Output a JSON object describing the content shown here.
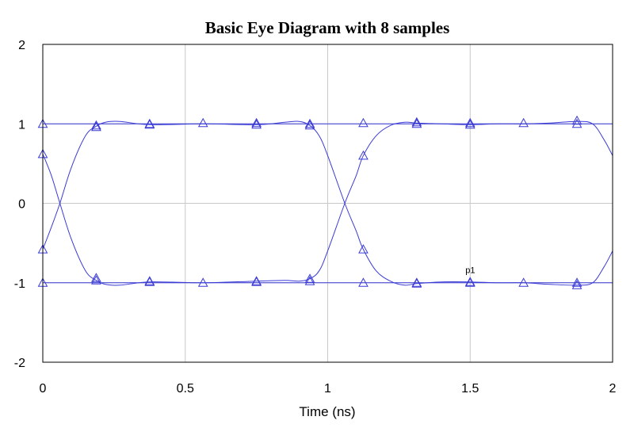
{
  "chart_data": {
    "type": "line",
    "title": "Basic Eye Diagram with 8 samples",
    "xlabel": "Time (ns)",
    "ylabel": "",
    "xlim": [
      0,
      2
    ],
    "ylim": [
      -2,
      2
    ],
    "xticks": [
      "0",
      "0.5",
      "1",
      "1.5",
      "2"
    ],
    "xtick_values": [
      0,
      0.5,
      1,
      1.5,
      2
    ],
    "yticks": [
      "2",
      "1",
      "0",
      "-1",
      "-2"
    ],
    "ytick_values": [
      2,
      1,
      0,
      -1,
      -2
    ],
    "grid": true,
    "line_color": "#3b3bd6",
    "marker": "triangle",
    "sample_times": [
      0,
      0.1875,
      0.375,
      0.5625,
      0.75,
      0.9375,
      1.125,
      1.3125,
      1.5,
      1.6875,
      1.875
    ],
    "series": [
      {
        "x": [
          0,
          1,
          2
        ],
        "y": [
          1,
          1,
          1
        ]
      },
      {
        "x": [
          0,
          1,
          2
        ],
        "y": [
          -1,
          -1,
          -1
        ]
      },
      {
        "x": [
          0,
          0.03,
          0.06,
          0.1,
          0.15,
          0.1875,
          0.22,
          0.27,
          0.375,
          0.5625,
          0.75,
          0.85,
          0.9,
          0.9375,
          0.97,
          1.0,
          1.06,
          1.1,
          1.125,
          1.17,
          1.22,
          1.27,
          1.3125,
          1.4,
          1.5,
          1.6,
          1.6875,
          1.78,
          1.875,
          1.93,
          1.97,
          2.0
        ],
        "y": [
          0.62,
          0.35,
          0.0,
          -0.45,
          -0.85,
          -0.97,
          -1.02,
          -1.03,
          -0.99,
          -1.0,
          -0.98,
          -0.97,
          -0.98,
          -0.95,
          -0.85,
          -0.6,
          0.0,
          0.35,
          0.6,
          0.85,
          0.98,
          1.02,
          1.01,
          1.0,
          0.99,
          1.0,
          1.0,
          1.01,
          1.03,
          1.0,
          0.8,
          0.6
        ]
      },
      {
        "x": [
          0,
          0.03,
          0.06,
          0.1,
          0.15,
          0.1875,
          0.22,
          0.27,
          0.375,
          0.5625,
          0.75,
          0.85,
          0.9,
          0.9375,
          0.97,
          1.0,
          1.06,
          1.1,
          1.125,
          1.17,
          1.22,
          1.27,
          1.3125,
          1.4,
          1.5,
          1.6,
          1.6875,
          1.78,
          1.875,
          1.93,
          1.97,
          2.0
        ],
        "y": [
          -0.58,
          -0.3,
          0.0,
          0.45,
          0.85,
          0.97,
          1.02,
          1.03,
          0.99,
          1.0,
          0.99,
          1.02,
          1.03,
          0.98,
          0.85,
          0.6,
          0.0,
          -0.35,
          -0.58,
          -0.85,
          -0.98,
          -1.03,
          -1.01,
          -0.99,
          -0.99,
          -1.0,
          -1.0,
          -1.02,
          -1.03,
          -1.0,
          -0.8,
          -0.6
        ]
      }
    ],
    "markers": [
      {
        "x": 0,
        "y": 1.0
      },
      {
        "x": 0,
        "y": 0.62
      },
      {
        "x": 0,
        "y": -0.58
      },
      {
        "x": 0,
        "y": -1.0
      },
      {
        "x": 0.1875,
        "y": 0.98
      },
      {
        "x": 0.1875,
        "y": 0.96
      },
      {
        "x": 0.1875,
        "y": -0.97
      },
      {
        "x": 0.1875,
        "y": -0.94
      },
      {
        "x": 0.375,
        "y": 1.0
      },
      {
        "x": 0.375,
        "y": 0.99
      },
      {
        "x": 0.375,
        "y": -0.99
      },
      {
        "x": 0.375,
        "y": -0.98
      },
      {
        "x": 0.5625,
        "y": 1.01
      },
      {
        "x": 0.5625,
        "y": -1.0
      },
      {
        "x": 0.75,
        "y": 1.01
      },
      {
        "x": 0.75,
        "y": 0.99
      },
      {
        "x": 0.75,
        "y": -0.99
      },
      {
        "x": 0.75,
        "y": -0.98
      },
      {
        "x": 0.9375,
        "y": 1.0
      },
      {
        "x": 0.9375,
        "y": 0.98
      },
      {
        "x": 0.9375,
        "y": -0.95
      },
      {
        "x": 0.9375,
        "y": -0.98
      },
      {
        "x": 1.125,
        "y": 1.01
      },
      {
        "x": 1.125,
        "y": 0.6
      },
      {
        "x": 1.125,
        "y": -0.58
      },
      {
        "x": 1.125,
        "y": -1.0
      },
      {
        "x": 1.3125,
        "y": 1.02
      },
      {
        "x": 1.3125,
        "y": 1.0
      },
      {
        "x": 1.3125,
        "y": -1.0
      },
      {
        "x": 1.3125,
        "y": -1.01
      },
      {
        "x": 1.5,
        "y": 1.01
      },
      {
        "x": 1.5,
        "y": 0.99
      },
      {
        "x": 1.5,
        "y": -0.99
      },
      {
        "x": 1.5,
        "y": -1.0
      },
      {
        "x": 1.6875,
        "y": 1.01
      },
      {
        "x": 1.6875,
        "y": -1.0
      },
      {
        "x": 1.875,
        "y": 1.04
      },
      {
        "x": 1.875,
        "y": 1.0
      },
      {
        "x": 1.875,
        "y": -1.0
      },
      {
        "x": 1.875,
        "y": -1.03
      }
    ],
    "annotation": {
      "text": "p1",
      "x": 1.5,
      "y": -0.93
    }
  }
}
